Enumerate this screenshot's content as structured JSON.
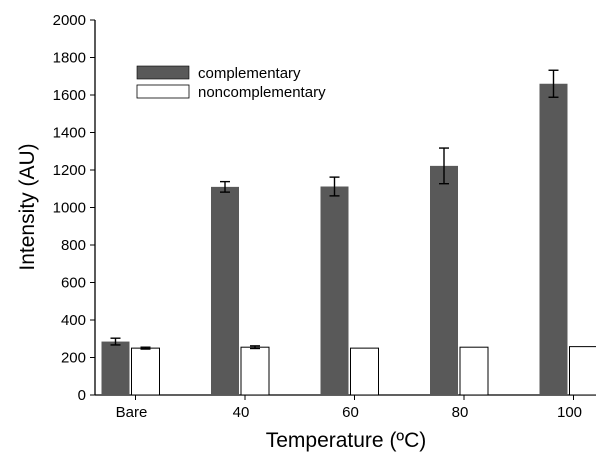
{
  "chart_data": {
    "type": "bar",
    "title": "",
    "xlabel": "Temperature (ºC)",
    "ylabel": "Intensity (AU)",
    "categories": [
      "Bare",
      "40",
      "60",
      "80",
      "100"
    ],
    "ylim": [
      0,
      2000
    ],
    "yticks": [
      0,
      200,
      400,
      600,
      800,
      1000,
      1200,
      1400,
      1600,
      1800,
      2000
    ],
    "legend_position": "upper-left",
    "series": [
      {
        "name": "complementary",
        "color": "#595959",
        "values": [
          285,
          1110,
          1112,
          1222,
          1660
        ],
        "errors": [
          18,
          28,
          50,
          95,
          72
        ]
      },
      {
        "name": "noncomplementary",
        "color": "#ffffff",
        "values": [
          250,
          255,
          250,
          255,
          258
        ],
        "errors": [
          5,
          7,
          0,
          0,
          0
        ]
      }
    ]
  }
}
